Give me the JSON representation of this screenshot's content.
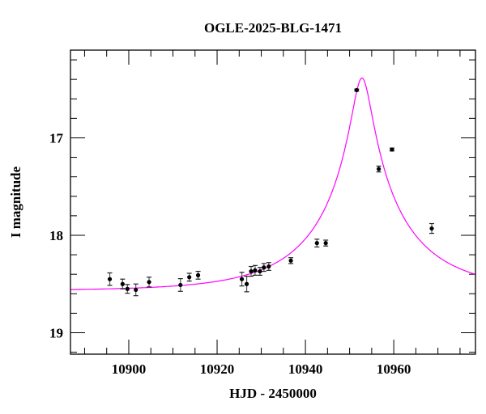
{
  "chart_data": {
    "type": "scatter",
    "title": "OGLE-2025-BLG-1471",
    "xlabel": "HJD - 2450000",
    "ylabel": "I magnitude",
    "xlim": [
      10886.8,
      10978.5
    ],
    "ylim": [
      19.22,
      16.1
    ],
    "y_inverted": true,
    "x_major_ticks": [
      10900,
      10920,
      10940,
      10960
    ],
    "x_minor_step": 5,
    "y_major_ticks": [
      17,
      18,
      19
    ],
    "y_minor_step": 0.2,
    "tick_labels_x": [
      "10900",
      "10920",
      "10940",
      "10960"
    ],
    "tick_labels_y": [
      "17",
      "18",
      "19"
    ],
    "grid": false,
    "colors": {
      "points": "#000000",
      "errorbars": "#555555",
      "model": "#ff00ff"
    },
    "points": [
      {
        "x": 10895.7,
        "y": 18.45,
        "err": 0.064
      },
      {
        "x": 10898.6,
        "y": 18.5,
        "err": 0.05
      },
      {
        "x": 10899.7,
        "y": 18.55,
        "err": 0.045
      },
      {
        "x": 10901.6,
        "y": 18.56,
        "err": 0.06
      },
      {
        "x": 10904.6,
        "y": 18.48,
        "err": 0.05
      },
      {
        "x": 10911.7,
        "y": 18.51,
        "err": 0.065
      },
      {
        "x": 10913.7,
        "y": 18.43,
        "err": 0.04
      },
      {
        "x": 10915.7,
        "y": 18.41,
        "err": 0.04
      },
      {
        "x": 10925.6,
        "y": 18.45,
        "err": 0.07
      },
      {
        "x": 10926.7,
        "y": 18.5,
        "err": 0.08
      },
      {
        "x": 10927.7,
        "y": 18.37,
        "err": 0.05
      },
      {
        "x": 10928.6,
        "y": 18.36,
        "err": 0.05
      },
      {
        "x": 10929.7,
        "y": 18.37,
        "err": 0.04
      },
      {
        "x": 10930.6,
        "y": 18.33,
        "err": 0.04
      },
      {
        "x": 10931.7,
        "y": 18.32,
        "err": 0.04
      },
      {
        "x": 10936.7,
        "y": 18.26,
        "err": 0.03
      },
      {
        "x": 10942.6,
        "y": 18.08,
        "err": 0.04
      },
      {
        "x": 10944.6,
        "y": 18.08,
        "err": 0.03
      },
      {
        "x": 10951.6,
        "y": 16.51,
        "err": 0.01
      },
      {
        "x": 10956.6,
        "y": 17.32,
        "err": 0.03
      },
      {
        "x": 10959.6,
        "y": 17.12,
        "err": 0.015
      },
      {
        "x": 10968.6,
        "y": 17.93,
        "err": 0.05
      }
    ],
    "model": {
      "kind": "point-lens",
      "t0": 10952.8,
      "u0": 0.098,
      "tE": 22,
      "blend_fs": 0.7,
      "I_base": 18.57
    }
  }
}
